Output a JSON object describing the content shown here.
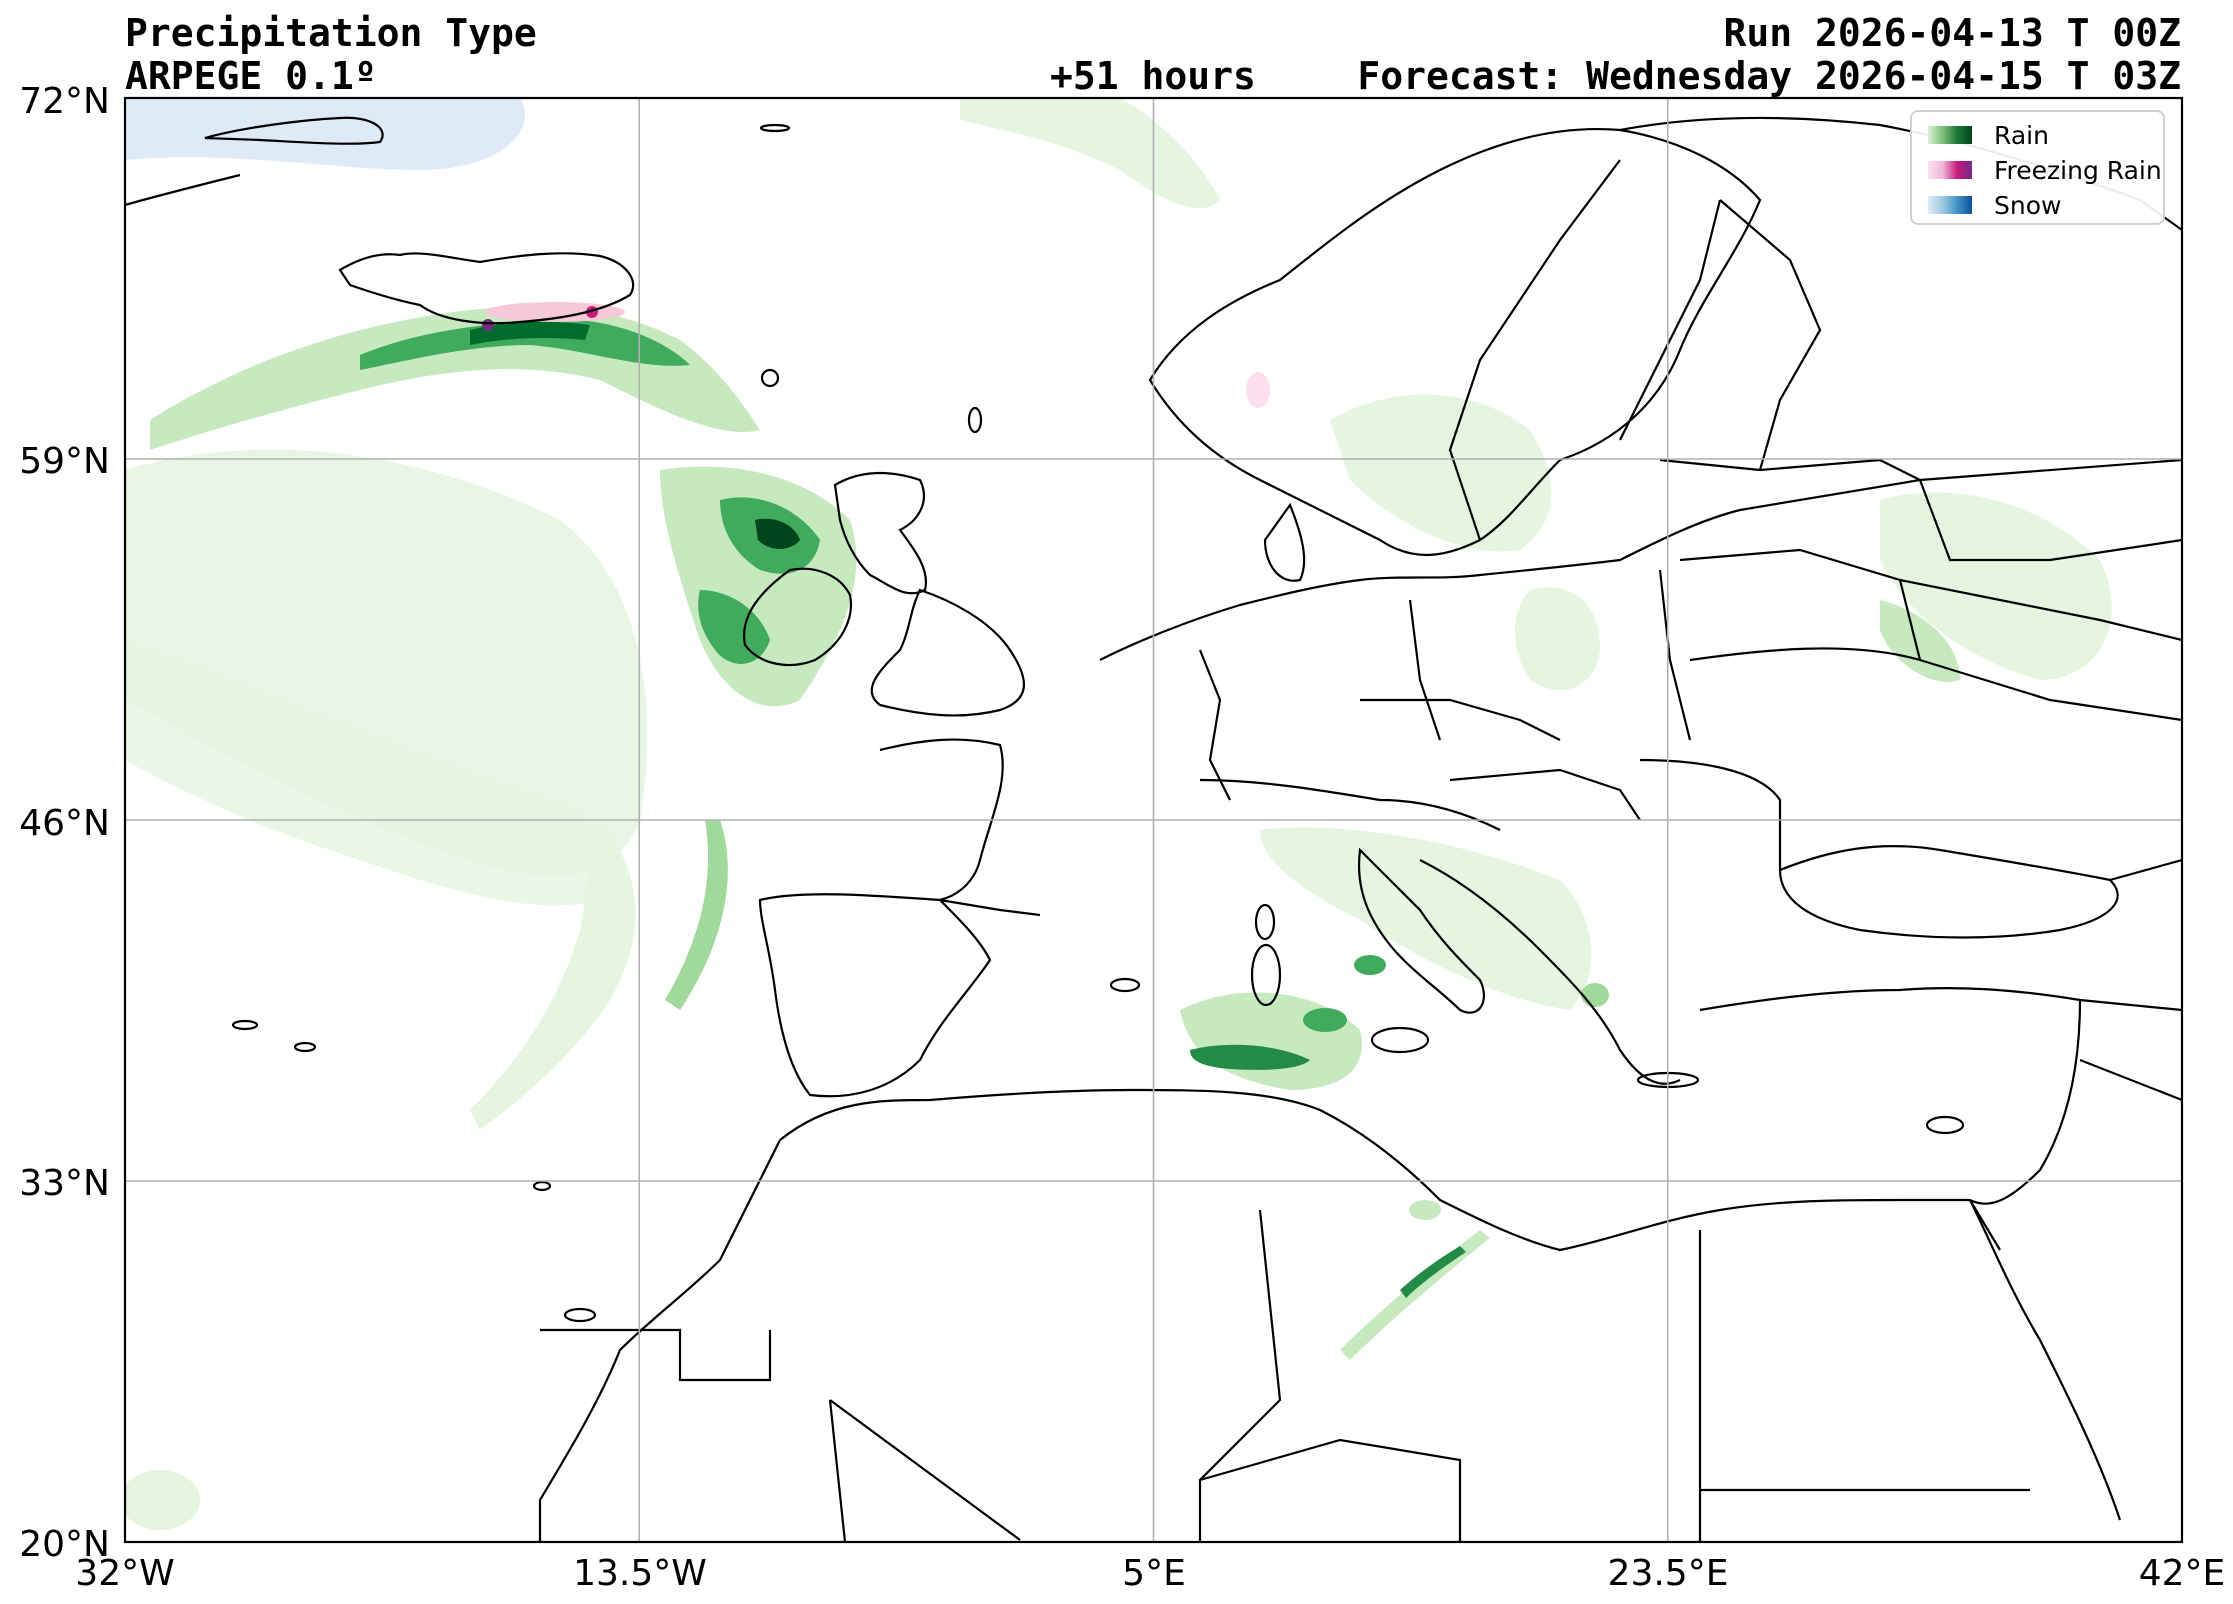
{
  "header": {
    "title": "Precipitation Type",
    "model": "ARPEGE 0.1º",
    "run": "Run 2026-04-13 T 00Z",
    "lead": "+51 hours",
    "forecast": "Forecast: Wednesday 2026-04-15 T 03Z"
  },
  "axes": {
    "lat_ticks": [
      "72°N",
      "59°N",
      "46°N",
      "33°N",
      "20°N"
    ],
    "lon_ticks": [
      "32°W",
      "13.5°W",
      "5°E",
      "23.5°E",
      "42°E"
    ],
    "lat_range": [
      20,
      72
    ],
    "lon_range": [
      -32,
      42
    ],
    "grid": true
  },
  "legend": {
    "placement": "top-right",
    "items": [
      {
        "label": "Rain",
        "colors": [
          "#d9f0d3",
          "#7fbf7b",
          "#1b7837",
          "#00441b"
        ]
      },
      {
        "label": "Freezing Rain",
        "colors": [
          "#fde0ef",
          "#f1b6da",
          "#c51b7d",
          "#762a83"
        ]
      },
      {
        "label": "Snow",
        "colors": [
          "#deebf7",
          "#9ecae1",
          "#4292c6",
          "#08519c"
        ]
      }
    ]
  },
  "colors": {
    "rain_light": "#e5f5e0",
    "rain_mid": "#a1d99b",
    "rain_heavy": "#41ab5d",
    "rain_max": "#00441b",
    "freezing_rain": "#f7c8d8",
    "freezing_rain_heavy": "#c51b7d",
    "snow_light": "#deebf7",
    "coastline": "#000000",
    "gridline": "#b0b0b0"
  }
}
